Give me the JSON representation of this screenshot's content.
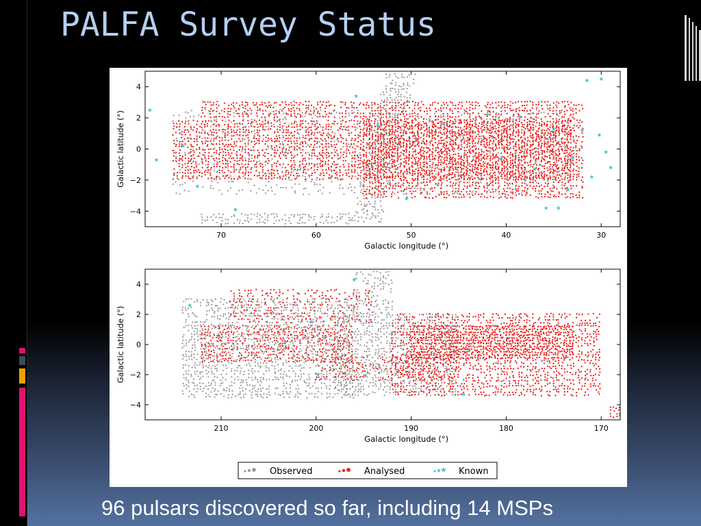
{
  "slide": {
    "title": "PALFA Survey Status",
    "caption": "96 pulsars discovered so far, including 14 MSPs"
  },
  "colors": {
    "title": "#b4d0f2",
    "observed": "#9a9a9a",
    "analysed": "#e8201b",
    "known": "#4cc4cc",
    "accent_pink": "#e0136f",
    "accent_gray": "#3c4a61",
    "accent_orange": "#f0a000"
  },
  "icons": [
    "window-frame-lines-icon"
  ],
  "chart_data": [
    {
      "type": "scatter",
      "name": "inner-galaxy",
      "xlabel": "Galactic longitude (°)",
      "ylabel": "Galactic latitude (°)",
      "xlim": [
        78,
        28
      ],
      "ylim": [
        -5,
        5
      ],
      "xticks": [
        70,
        60,
        50,
        40,
        30
      ],
      "yticks": [
        4,
        2,
        0,
        -2,
        -4
      ],
      "grid": false,
      "series": [
        {
          "name": "Observed",
          "marker": "dot",
          "regions": [
            {
              "x": [
                75,
                33
              ],
              "y": [
                -3.0,
                2.5
              ],
              "density": 0.22
            },
            {
              "x": [
                58,
                47
              ],
              "y": [
                -4.8,
                4.8
              ],
              "density": 0.55,
              "band": "diagonal"
            },
            {
              "x": [
                72,
                56
              ],
              "y": [
                -4.8,
                -4.2
              ],
              "density": 0.5
            }
          ]
        },
        {
          "name": "Analysed",
          "marker": "dot",
          "regions": [
            {
              "x": [
                75,
                33
              ],
              "y": [
                -2.0,
                1.8
              ],
              "density": 0.7
            },
            {
              "x": [
                72,
                55
              ],
              "y": [
                2.0,
                3.0
              ],
              "density": 0.65
            },
            {
              "x": [
                55,
                32
              ],
              "y": [
                -3.2,
                3.0
              ],
              "density": 0.65
            }
          ]
        },
        {
          "name": "Known",
          "marker": "star",
          "points": [
            [
              77.5,
              2.5
            ],
            [
              76.8,
              -0.7
            ],
            [
              74.0,
              0.2
            ],
            [
              72.5,
              -2.4
            ],
            [
              68.5,
              -3.9
            ],
            [
              55.8,
              3.4
            ],
            [
              46.6,
              1.6
            ],
            [
              42.0,
              2.2
            ],
            [
              38.6,
              2.1
            ],
            [
              37.0,
              -1.3
            ],
            [
              35.0,
              1.3
            ],
            [
              33.0,
              -0.6
            ],
            [
              32.0,
              1.2
            ],
            [
              31.0,
              -1.8
            ],
            [
              30.2,
              0.9
            ],
            [
              29.5,
              -0.2
            ],
            [
              29.0,
              -1.2
            ],
            [
              34.5,
              -3.8
            ],
            [
              35.8,
              -3.8
            ],
            [
              30.0,
              4.5
            ],
            [
              31.5,
              4.4
            ],
            [
              33.5,
              -2.6
            ],
            [
              38.0,
              -2.0
            ],
            [
              40.5,
              -0.6
            ],
            [
              45.0,
              -1.7
            ],
            [
              50.5,
              -3.2
            ],
            [
              53.5,
              1.5
            ]
          ]
        }
      ]
    },
    {
      "type": "scatter",
      "name": "anticenter",
      "xlabel": "Galactic longitude (°)",
      "ylabel": "Galactic latitude (°)",
      "xlim": [
        218,
        168
      ],
      "ylim": [
        -5,
        5
      ],
      "xticks": [
        210,
        200,
        190,
        180,
        170
      ],
      "yticks": [
        4,
        2,
        0,
        -2,
        -4
      ],
      "grid": false,
      "series": [
        {
          "name": "Observed",
          "marker": "dot",
          "regions": [
            {
              "x": [
                214,
                196
              ],
              "y": [
                -3.5,
                3.0
              ],
              "density": 0.55
            },
            {
              "x": [
                198,
                185
              ],
              "y": [
                -3.5,
                2.0
              ],
              "density": 0.6
            },
            {
              "x": [
                196,
                192
              ],
              "y": [
                2.0,
                4.8
              ],
              "density": 0.5
            }
          ]
        },
        {
          "name": "Analysed",
          "marker": "dot",
          "regions": [
            {
              "x": [
                212,
                196
              ],
              "y": [
                -1.2,
                1.2
              ],
              "density": 0.6
            },
            {
              "x": [
                209,
                194
              ],
              "y": [
                1.5,
                3.6
              ],
              "density": 0.35
            },
            {
              "x": [
                200,
                185
              ],
              "y": [
                -2.5,
                -0.8
              ],
              "density": 0.45
            },
            {
              "x": [
                192,
                170
              ],
              "y": [
                -3.5,
                2.0
              ],
              "density": 0.55
            },
            {
              "x": [
                190,
                173
              ],
              "y": [
                -1.0,
                1.2
              ],
              "density": 0.9
            },
            {
              "x": [
                169,
                168
              ],
              "y": [
                -4.8,
                -4.2
              ],
              "density": 0.9
            }
          ]
        },
        {
          "name": "Known",
          "marker": "star",
          "points": [
            [
              196.0,
              4.3
            ],
            [
              199.8,
              -2.0
            ],
            [
              200.5,
              1.5
            ],
            [
              192.0,
              0.8
            ],
            [
              184.5,
              -3.3
            ],
            [
              213.3,
              2.6
            ]
          ]
        }
      ]
    }
  ],
  "legend": {
    "items": [
      {
        "label": "Observed",
        "color": "#9a9a9a",
        "marker": "dot"
      },
      {
        "label": "Analysed",
        "color": "#e8201b",
        "marker": "dot"
      },
      {
        "label": "Known",
        "color": "#4cc4cc",
        "marker": "star"
      }
    ]
  }
}
